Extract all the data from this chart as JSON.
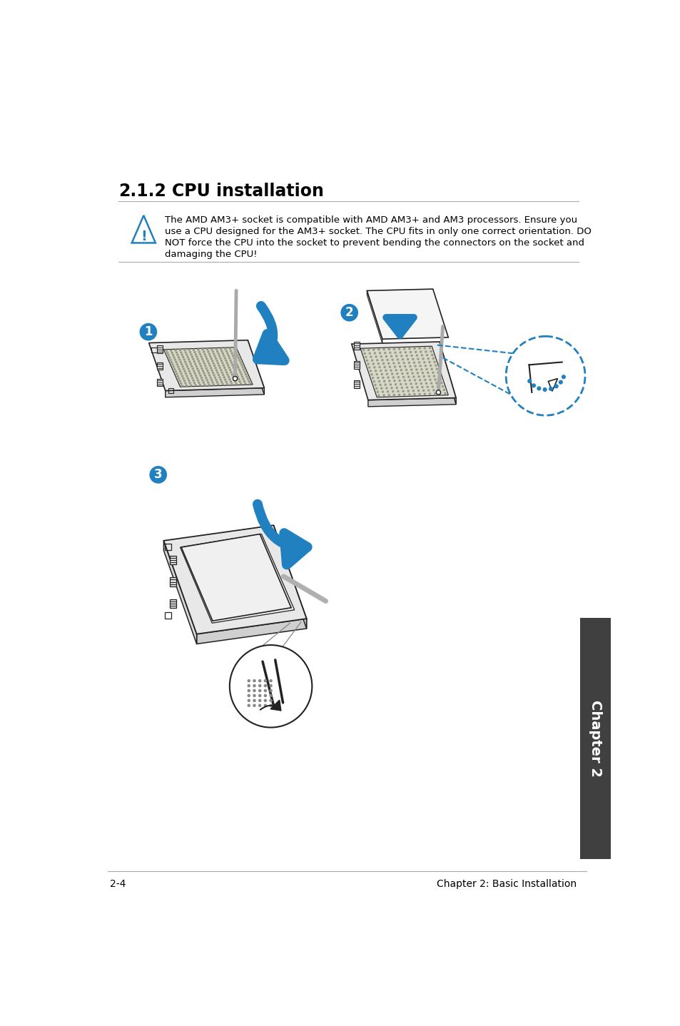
{
  "title_number": "2.1.2",
  "title_text": "CPU installation",
  "warning_text": "The AMD AM3+ socket is compatible with AMD AM3+ and AM3 processors. Ensure you\nuse a CPU designed for the AM3+ socket. The CPU fits in only one correct orientation. DO\nNOT force the CPU into the socket to prevent bending the connectors on the socket and\ndamaging the CPU!",
  "footer_left": "2-4",
  "footer_right": "Chapter 2: Basic Installation",
  "bg_color": "#ffffff",
  "text_color": "#000000",
  "blue_color": "#2080c0",
  "sidebar_color": "#404040",
  "sidebar_text": "Chapter 2",
  "line_color": "#aaaaaa",
  "draw_color": "#222222",
  "socket_fill": "#f0f0f0",
  "socket_pin": "#c8c8b8",
  "socket_edge": "#333333"
}
